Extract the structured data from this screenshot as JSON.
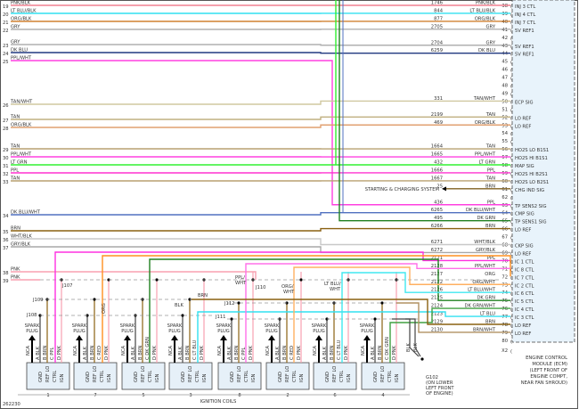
{
  "footer": {
    "figure_id": "262230",
    "coils_label": "IGNITION COILS"
  },
  "ecm": {
    "label_lines": [
      "ENGINE CONTROL",
      "MODULE (ECM)",
      "(LEFT FRONT OF",
      "ENGINE COMPT,",
      "NEAR FAN SHROUD)"
    ],
    "fill": "#e8f3fb",
    "pins": [
      {
        "pin": "38",
        "func": "INJ 3 CTL"
      },
      {
        "pin": "39",
        "func": "INJ 4 CTL"
      },
      {
        "pin": "40",
        "func": "INJ 7 CTL"
      },
      {
        "pin": "41",
        "func": "5V REF1"
      },
      {
        "pin": "42",
        "func": ""
      },
      {
        "pin": "43",
        "func": "5V REF1"
      },
      {
        "pin": "44",
        "func": "5V REF1"
      },
      {
        "pin": "45",
        "func": ""
      },
      {
        "pin": "46",
        "func": ""
      },
      {
        "pin": "47",
        "func": ""
      },
      {
        "pin": "48",
        "func": ""
      },
      {
        "pin": "49",
        "func": ""
      },
      {
        "pin": "50",
        "func": "ECP SIG"
      },
      {
        "pin": "51",
        "func": ""
      },
      {
        "pin": "52",
        "func": "LO REF"
      },
      {
        "pin": "53",
        "func": "LO REF"
      },
      {
        "pin": "54",
        "func": ""
      },
      {
        "pin": "55",
        "func": ""
      },
      {
        "pin": "56",
        "func": "HO2S LO B1S1"
      },
      {
        "pin": "57",
        "func": "HO2S HI B1S1"
      },
      {
        "pin": "58",
        "func": "MAP SIG"
      },
      {
        "pin": "59",
        "func": "HO2S HI B2S1"
      },
      {
        "pin": "60",
        "func": "HO2S LO B2S1"
      },
      {
        "pin": "61",
        "func": "CHG IND SIG"
      },
      {
        "pin": "62",
        "func": ""
      },
      {
        "pin": "63",
        "func": "TP SENS2 SIG"
      },
      {
        "pin": "64",
        "func": "CMP SIG"
      },
      {
        "pin": "65",
        "func": "TP SENS1 SIG"
      },
      {
        "pin": "66",
        "func": "LO REF"
      },
      {
        "pin": "67",
        "func": ""
      },
      {
        "pin": "68",
        "func": "CKP SIG"
      },
      {
        "pin": "69",
        "func": "LO REF"
      },
      {
        "pin": "70",
        "func": "IC 1 CTL"
      },
      {
        "pin": "71",
        "func": "IC 8 CTL"
      },
      {
        "pin": "72",
        "func": "IC 7 CTL"
      },
      {
        "pin": "73",
        "func": "IC 2 CTL"
      },
      {
        "pin": "74",
        "func": "IC 6 CTL"
      },
      {
        "pin": "75",
        "func": "IC 5 CTL"
      },
      {
        "pin": "76",
        "func": "IC 4 CTL"
      },
      {
        "pin": "77",
        "func": "IC 3 CTL"
      },
      {
        "pin": "78",
        "func": "LO REF"
      },
      {
        "pin": "79",
        "func": "LO REF"
      },
      {
        "pin": "80",
        "func": ""
      },
      {
        "pin": "X2",
        "func": ""
      }
    ]
  },
  "wires": [
    {
      "row": "19",
      "color_name": "PNK/BLK",
      "circuit": "1746",
      "pin": "38",
      "hex": "#f08090"
    },
    {
      "row": "20",
      "color_name": "LT BLU/BLK",
      "circuit": "844",
      "pin": "39",
      "hex": "#30e0f0"
    },
    {
      "row": "21",
      "color_name": "ORG/BLK",
      "circuit": "877",
      "pin": "40",
      "hex": "#d08030"
    },
    {
      "row": "22",
      "color_name": "GRY",
      "circuit": "2705",
      "pin": "41",
      "hex": "#b0b0b0"
    },
    {
      "row": "23",
      "color_name": "GRY",
      "circuit": "2704",
      "pin": "43",
      "hex": "#b0b0b0"
    },
    {
      "row": "24",
      "color_name": "DK BLU",
      "circuit": "6259",
      "pin": "44",
      "hex": "#203880"
    },
    {
      "row": "25",
      "color_name": "PPL/WHT",
      "circuit": "",
      "pin": "",
      "hex": "#ff40e0"
    },
    {
      "row": "26",
      "color_name": "TAN/WHT",
      "circuit": "331",
      "pin": "50",
      "hex": "#d0c8a0"
    },
    {
      "row": "27",
      "color_name": "TAN",
      "circuit": "2199",
      "pin": "52",
      "hex": "#c0b080"
    },
    {
      "row": "28",
      "color_name": "ORG/BLK",
      "circuit": "469",
      "pin": "53",
      "hex": "#e0a070"
    },
    {
      "row": "29",
      "color_name": "TAN",
      "circuit": "1664",
      "pin": "56",
      "hex": "#b8a070"
    },
    {
      "row": "30",
      "color_name": "PPL/WHT",
      "circuit": "1665",
      "pin": "57",
      "hex": "#ff40e0"
    },
    {
      "row": "31",
      "color_name": "LT GRN",
      "circuit": "432",
      "pin": "58",
      "hex": "#30f030"
    },
    {
      "row": "32",
      "color_name": "PPL",
      "circuit": "1666",
      "pin": "59",
      "hex": "#ff30d0"
    },
    {
      "row": "33",
      "color_name": "TAN",
      "circuit": "1667",
      "pin": "60",
      "hex": "#b8a070"
    },
    {
      "row": "",
      "color_name": "BRN",
      "circuit": "25",
      "pin": "61",
      "hex": "#806020",
      "dest": "STARTING & CHARGING SYSTEM"
    },
    {
      "row": "",
      "color_name": "PPL",
      "circuit": "436",
      "pin": "63",
      "hex": "#ff30d0"
    },
    {
      "row": "34",
      "color_name": "DK BLU/WHT",
      "circuit": "6265",
      "pin": "64",
      "hex": "#5070c0"
    },
    {
      "row": "",
      "color_name": "DK GRN",
      "circuit": "495",
      "pin": "65",
      "hex": "#208020"
    },
    {
      "row": "35",
      "color_name": "BRN",
      "circuit": "6266",
      "pin": "66",
      "hex": "#8a6010"
    },
    {
      "row": "36",
      "color_name": "WHT/BLK",
      "circuit": "6271",
      "pin": "68",
      "hex": "#c8c8c8"
    },
    {
      "row": "37",
      "color_name": "GRY/BLK",
      "circuit": "6272",
      "pin": "69",
      "hex": "#a8a8a8"
    },
    {
      "row": "",
      "color_name": "PPL",
      "circuit": "2121",
      "pin": "70",
      "hex": "#ff30e0"
    },
    {
      "row": "",
      "color_name": "PPL/WHT",
      "circuit": "2128",
      "pin": "71",
      "hex": "#ff70e8"
    },
    {
      "row": "",
      "color_name": "ORG",
      "circuit": "2127",
      "pin": "72",
      "hex": "#ff9020"
    },
    {
      "row": "",
      "color_name": "ORG/WHT",
      "circuit": "2122",
      "pin": "73",
      "hex": "#ffb060"
    },
    {
      "row": "",
      "color_name": "LT BLU/WHT",
      "circuit": "2126",
      "pin": "74",
      "hex": "#40e8f0"
    },
    {
      "row": "",
      "color_name": "DK GRN",
      "circuit": "2125",
      "pin": "75",
      "hex": "#208020"
    },
    {
      "row": "",
      "color_name": "DK GRN/WHT",
      "circuit": "2124",
      "pin": "76",
      "hex": "#40a040"
    },
    {
      "row": "",
      "color_name": "LT BLU",
      "circuit": "2123",
      "pin": "77",
      "hex": "#30e0f0"
    },
    {
      "row": "",
      "color_name": "BRN",
      "circuit": "2129",
      "pin": "78",
      "hex": "#8a6010"
    },
    {
      "row": "",
      "color_name": "BRN/WHT",
      "circuit": "2130",
      "pin": "79",
      "hex": "#b09060"
    },
    {
      "row": "38",
      "color_name": "PNK",
      "circuit": "",
      "pin": "",
      "hex": "#f8a0b0"
    },
    {
      "row": "39",
      "color_name": "PNK",
      "circuit": "",
      "pin": "",
      "hex": "#f8a0b0"
    }
  ],
  "splices": [
    "J107",
    "J109",
    "J108",
    "J110",
    "J112",
    "J111"
  ],
  "splice_wire_labels": [
    "BRN",
    "BLK",
    "ORG",
    "PPL/ WHT",
    "ORG/ WHT",
    "LT BLU/ WHT"
  ],
  "ground": {
    "id": "G102",
    "lines": [
      "(ON LOWER",
      "LEFT FRONT",
      "OF ENGINE)"
    ],
    "wire_labels": [
      "BLK",
      "BLK"
    ]
  },
  "coils": [
    {
      "number": "1",
      "c_color": "PPL",
      "c_hex": "#ff30e0"
    },
    {
      "number": "7",
      "c_color": "RED",
      "c_hex": "#ff2020"
    },
    {
      "number": "5",
      "c_color": "DK GRN",
      "c_hex": "#208020"
    },
    {
      "number": "3",
      "c_color": "LT BLU",
      "c_hex": "#30e0f0"
    },
    {
      "number": "8",
      "c_color": "PPL",
      "c_hex": "#ff30e0"
    },
    {
      "number": "2",
      "c_color": "RED",
      "c_hex": "#ff2020"
    },
    {
      "number": "6",
      "c_color": "LT BLU",
      "c_hex": "#30e0f0"
    },
    {
      "number": "4",
      "c_color": "DK GRN",
      "c_hex": "#208020"
    }
  ],
  "coil_common": {
    "spark_plug": [
      "SPARK",
      "PLUG"
    ],
    "nca": "NCA",
    "pin_a": "A BLK",
    "pin_b": "B BRN",
    "pin_c_prefix": "C",
    "pin_d": "D PNK",
    "terminals": [
      "GND",
      "REF LO",
      "CTRL",
      "IGN"
    ]
  }
}
